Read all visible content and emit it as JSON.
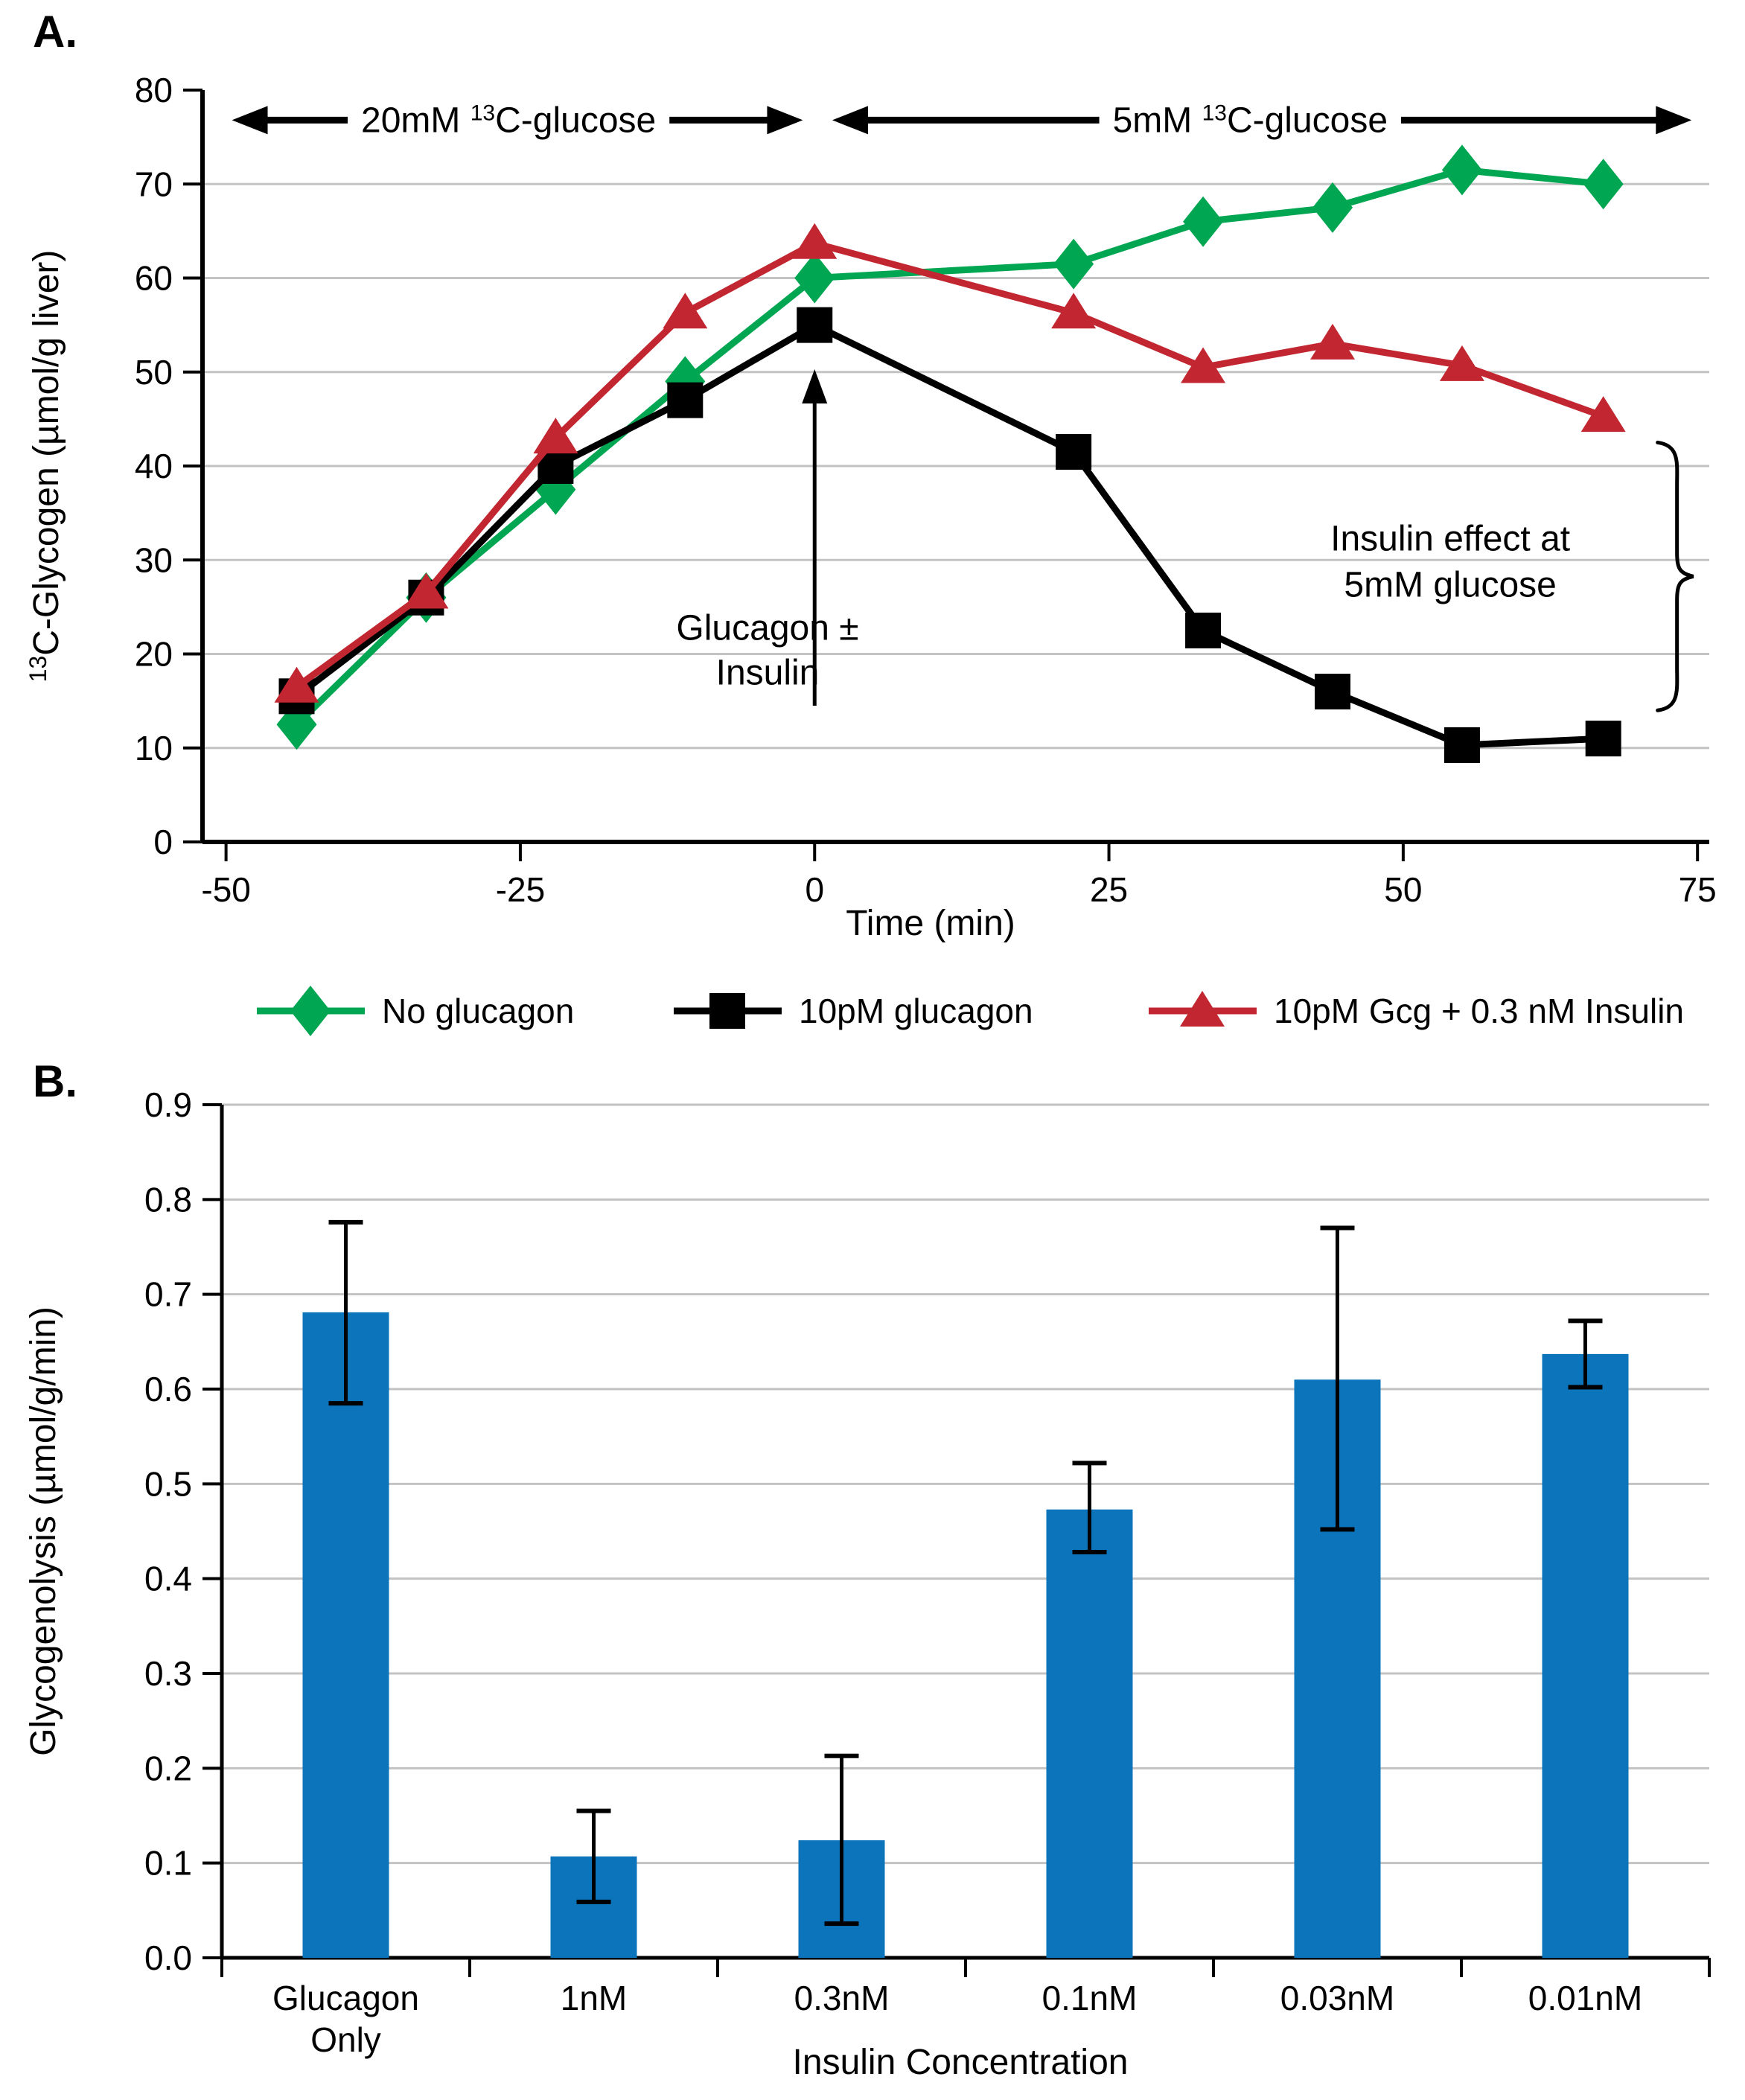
{
  "figure": {
    "panel_a_label": "A.",
    "panel_b_label": "B."
  },
  "chart_data": [
    {
      "panel": "A",
      "type": "line",
      "x": [
        -44,
        -33,
        -22,
        -11,
        0,
        22,
        33,
        44,
        55,
        67
      ],
      "series": [
        {
          "name": "No glucagon",
          "color": "#00A651",
          "marker": "diamond",
          "values": [
            12.5,
            26,
            37.5,
            49,
            60,
            61.5,
            66,
            67.5,
            71.5,
            70
          ]
        },
        {
          "name": "10pM glucagon",
          "color": "#000000",
          "marker": "square",
          "values": [
            15.5,
            26,
            40,
            47,
            55,
            41.5,
            22.5,
            16,
            10.3,
            11
          ]
        },
        {
          "name": "10pM Gcg + 0.3 nM Insulin",
          "color": "#C22630",
          "marker": "triangle",
          "values": [
            16.5,
            26.5,
            43,
            56.3,
            63.7,
            56.3,
            50.5,
            53,
            50.7,
            45.3
          ]
        }
      ],
      "xlabel": "Time (min)",
      "ylabel": {
        "sup": "13",
        "text": "C-Glycogen (µmol/g liver)"
      },
      "xlim": [
        -50,
        75
      ],
      "ylim": [
        0,
        80
      ],
      "xticks": [
        -50,
        -25,
        0,
        25,
        50,
        75
      ],
      "yticks": [
        0,
        10,
        20,
        30,
        40,
        50,
        60,
        70,
        80
      ],
      "grid": "horizontal",
      "legend_position": "bottom",
      "annotations": {
        "regions": [
          {
            "pre": "20mM ",
            "sup": "13",
            "post": "C-glucose",
            "x1": -49.5,
            "x2": -1,
            "y": 76.8,
            "label_x": -26
          },
          {
            "pre": "5mM ",
            "sup": "13",
            "post": "C-glucose",
            "x1": 1.5,
            "x2": 74.5,
            "y": 76.8,
            "label_x": 37
          }
        ],
        "event_arrow": {
          "lines": [
            "Glucagon ±",
            "Insulin"
          ],
          "x": 0,
          "tip_y": 50.3,
          "tail_y": 14.5,
          "label_x": -4,
          "label_y": 21.5
        },
        "brace_note": {
          "lines": [
            "Insulin effect at",
            "5mM glucose"
          ],
          "label_x": 54,
          "label_y": 31,
          "brace_x": 72.5,
          "brace_top": 42.5,
          "brace_bottom": 14
        }
      }
    },
    {
      "panel": "B",
      "type": "bar",
      "categories": [
        [
          "Glucagon",
          "Only"
        ],
        [
          "1nM"
        ],
        [
          "0.3nM"
        ],
        [
          "0.1nM"
        ],
        [
          "0.03nM"
        ],
        [
          "0.01nM"
        ]
      ],
      "values": [
        0.681,
        0.107,
        0.124,
        0.473,
        0.61,
        0.637
      ],
      "error_high": [
        0.776,
        0.155,
        0.213,
        0.522,
        0.77,
        0.672
      ],
      "error_low": [
        0.585,
        0.059,
        0.036,
        0.428,
        0.452,
        0.602
      ],
      "bar_color": "#0C74BB",
      "xlabel": "Insulin Concentration",
      "ylabel": "Glycogenolysis  (µmol/g/min)",
      "ylim": [
        0,
        0.9
      ],
      "yticks": [
        0,
        0.1,
        0.2,
        0.3,
        0.4,
        0.5,
        0.6,
        0.7,
        0.8,
        0.9
      ],
      "grid": "horizontal"
    }
  ],
  "colors": {
    "grid": "#c3c3c3",
    "axis": "#000000",
    "background": "#ffffff"
  }
}
